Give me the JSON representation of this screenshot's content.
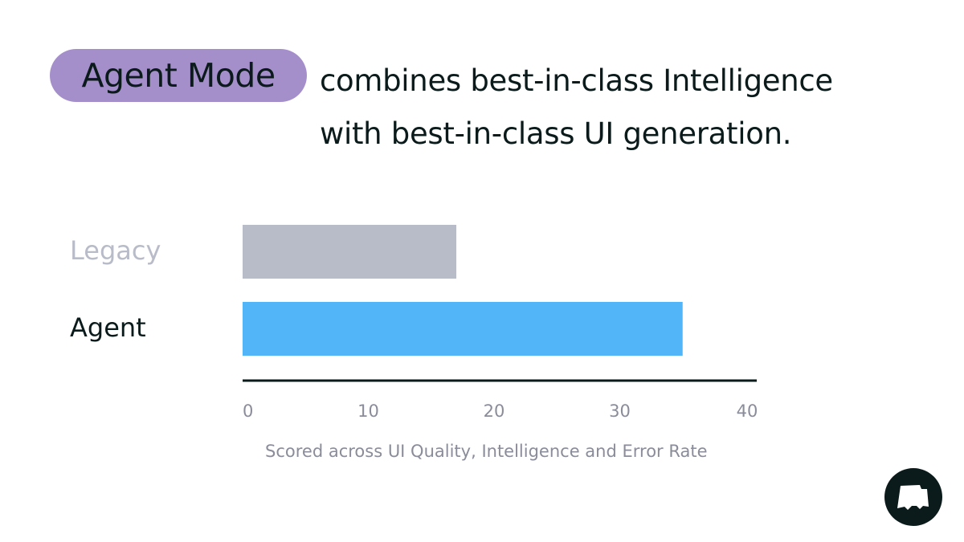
{
  "header": {
    "badge": "Agent Mode",
    "line1": "combines best-in-class Intelligence",
    "line2": "with best-in-class UI generation."
  },
  "colors": {
    "badge": "#a58fcb",
    "legacy": "#b8bbc8",
    "agent": "#51b5f7",
    "axis": "#0b1a1a",
    "tick": "#8a8c99"
  },
  "chart_data": {
    "type": "bar",
    "orientation": "horizontal",
    "categories": [
      "Legacy",
      "Agent"
    ],
    "values": [
      17,
      35
    ],
    "xlim": [
      0,
      40
    ],
    "xticks": [
      0,
      10,
      20,
      30,
      40
    ],
    "xlabel": "Scored across UI Quality, Intelligence and Error Rate",
    "grid": false
  },
  "logo": {
    "icon": "brand-flag-logo"
  }
}
